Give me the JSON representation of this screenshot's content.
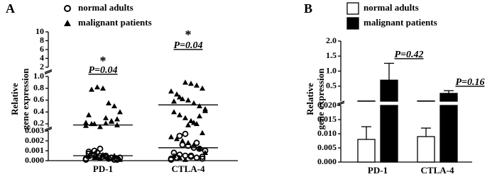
{
  "chart_data": [
    {
      "type": "scatter",
      "panel_label": "A",
      "ylabel": [
        "Relative",
        "gene expression"
      ],
      "categories": [
        "PD-1",
        "CTLA-4"
      ],
      "segments": [
        {
          "ylim": [
            0,
            0.003
          ],
          "yticks": [
            {
              "value": 0,
              "label": "0.000"
            },
            {
              "value": 0.001,
              "label": "0.001"
            },
            {
              "value": 0.002,
              "label": "0.002"
            },
            {
              "value": 0.003,
              "label": "0.003"
            }
          ]
        },
        {
          "ylim": [
            0.14,
            1
          ],
          "yticks": [
            0.2,
            0.4,
            0.6,
            0.8,
            {
              "value": 1,
              "label": "1.0"
            }
          ]
        },
        {
          "ylim": [
            2,
            10
          ],
          "yticks": [
            2,
            4,
            6,
            8,
            10
          ]
        }
      ],
      "series": [
        {
          "name": "normal adults",
          "marker": "circle",
          "color": "#000000",
          "values": [
            [
              0.0001,
              0.0002,
              0.0003,
              0.0004,
              0.0005,
              0.0006,
              0.0007,
              0.0003,
              0.0001,
              0.0002,
              0.0004,
              0.0008,
              0.0006,
              0.0002,
              0.0001,
              0.0003,
              0.0005,
              0.0012,
              0.001,
              0.0009
            ],
            [
              0.0001,
              0.0002,
              0.0003,
              0.0004,
              0.0005,
              0.0006,
              0.0008,
              0.001,
              0.0012,
              0.0013,
              0.0015,
              0.0016,
              0.0003,
              0.0002,
              0.0004,
              0.0018,
              0.0005,
              0.0027,
              0.0025
            ]
          ],
          "means": [
            0.0005,
            0.0013
          ]
        },
        {
          "name": "malignant patients",
          "marker": "triangle",
          "color": "#000000",
          "values": [
            [
              0.0002,
              0.0003,
              0.0004,
              0.0001,
              0.0005,
              0.0002,
              0.0006,
              0.0003,
              0.2,
              0.22,
              0.18,
              0.25,
              0.3,
              0.15,
              0.2,
              0.35,
              0.4,
              0.5,
              0.55,
              0.8,
              0.82,
              0.78,
              0.17,
              0.28,
              0.24,
              0.21
            ],
            [
              0.0001,
              0.0003,
              0.0005,
              0.0008,
              0.0012,
              0.0016,
              0.0018,
              0.002,
              0.0022,
              0.0024,
              0.0028,
              0.2,
              0.25,
              0.3,
              0.35,
              0.4,
              0.45,
              0.5,
              0.55,
              0.6,
              0.62,
              0.7,
              0.75,
              0.8,
              0.85,
              0.88,
              0.9,
              0.65,
              0.58,
              0.42,
              0.33,
              0.22,
              0.18
            ]
          ],
          "means": [
            0.18,
            0.52
          ]
        }
      ],
      "annotations": [
        {
          "text": "P=0.04",
          "mark": "*"
        },
        {
          "text": "P=0.04",
          "mark": "*"
        }
      ]
    },
    {
      "type": "bar",
      "panel_label": "B",
      "ylabel": [
        "Relative",
        "gene expression"
      ],
      "categories": [
        "PD-1",
        "CTLA-4"
      ],
      "segments": [
        {
          "ylim": [
            0,
            0.02
          ],
          "yticks": [
            {
              "value": 0,
              "label": "0.000"
            },
            {
              "value": 0.005,
              "label": "0.005"
            },
            {
              "value": 0.01,
              "label": "0.010"
            },
            {
              "value": 0.015,
              "label": "0.015"
            },
            {
              "value": 0.02,
              "label": "0.020"
            }
          ]
        },
        {
          "ylim": [
            0,
            2
          ],
          "yticks": [
            0.5,
            {
              "value": 1,
              "label": "1.0"
            },
            1.5,
            {
              "value": 2,
              "label": "2.0"
            }
          ]
        }
      ],
      "series": [
        {
          "name": "normal adults",
          "color": "#ffffff",
          "values": [
            0.008,
            0.009
          ],
          "errors": [
            0.0045,
            0.003
          ]
        },
        {
          "name": "malignant patients",
          "color": "#000000",
          "values": [
            0.7,
            0.26
          ],
          "errors": [
            0.56,
            0.09
          ]
        }
      ],
      "annotations": [
        {
          "text": "P=0.42"
        },
        {
          "text": "P=0.16"
        }
      ]
    }
  ]
}
